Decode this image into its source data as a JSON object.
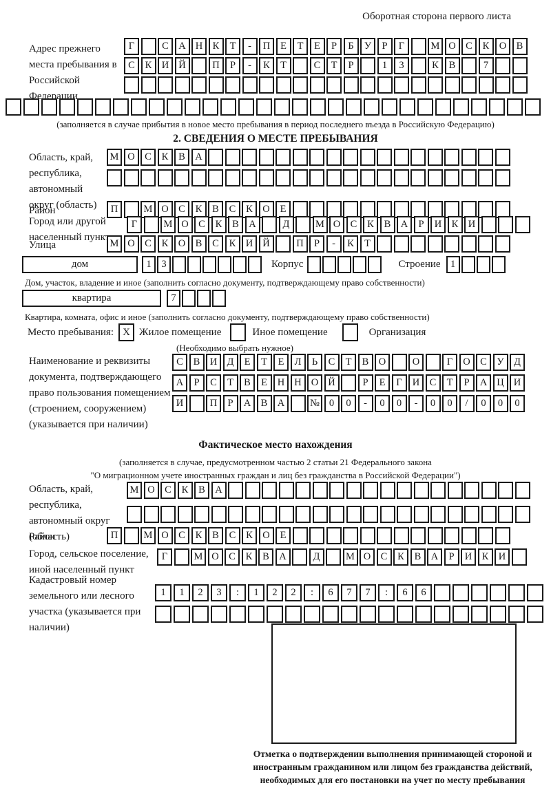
{
  "page": {
    "header_note": "Оборотная сторона первого листа"
  },
  "prev_address": {
    "label": "Адрес прежнего места пребывания в Российской Федерации",
    "rows": [
      {
        "count": 24,
        "chars": "Г САНКТ-ПЕТЕРБУРГ МОСКОВ"
      },
      {
        "count": 24,
        "chars": "СКИЙ ПР-КТ СТР 13 КВ 7"
      },
      {
        "count": 24,
        "chars": ""
      }
    ],
    "overflow_row": {
      "count": 30,
      "chars": ""
    },
    "note": "(заполняется в случае прибытия в новое место пребывания в период последнего въезда в Российскую Федерацию)"
  },
  "section2": {
    "title": "2. СВЕДЕНИЯ О МЕСТЕ ПРЕБЫВАНИЯ",
    "region": {
      "label": "Область, край, республика, автономный округ (область)",
      "rows": [
        {
          "count": 24,
          "chars": "МОСКВА"
        },
        {
          "count": 24,
          "chars": ""
        }
      ]
    },
    "district": {
      "label": "Район",
      "row": {
        "count": 24,
        "chars": "П МОСКВСКОЕ"
      }
    },
    "city": {
      "label": "Город или другой населенный пункт",
      "row": {
        "count": 24,
        "chars": "Г МОСКВА Д МОСКВАРИКИ"
      }
    },
    "street": {
      "label": "Улица",
      "row": {
        "count": 24,
        "chars": "МОСКОВСКИЙ ПР-КТ"
      }
    },
    "house": {
      "box_label": "дом",
      "cells": {
        "count": 8,
        "chars": "13"
      },
      "korpus_label": "Корпус",
      "korpus_cells": {
        "count": 5,
        "chars": ""
      },
      "stroenie_label": "Строение",
      "stroenie_cells": {
        "count": 4,
        "chars": "1"
      },
      "note": "Дом, участок, владение и иное (заполнить согласно документу, подтверждающему право собственности)"
    },
    "apartment": {
      "box_label": "квартира",
      "cells": {
        "count": 4,
        "chars": "7"
      },
      "note": "Квартира, комната, офис и иное (заполнить согласно документу, подтверждающему право собственности)"
    },
    "stay_type": {
      "label": "Место пребывания:",
      "options": [
        {
          "label": "Жилое помещение",
          "checked": "X"
        },
        {
          "label": "Иное помещение",
          "checked": ""
        },
        {
          "label": "Организация",
          "checked": ""
        }
      ],
      "note": "(Необходимо выбрать нужное)"
    },
    "document": {
      "label": "Наименование и реквизиты документа, подтверждающего право пользования помещением (строением, сооружением) (указывается при наличии)",
      "rows": [
        {
          "count": 21,
          "chars": "СВИДЕТЕЛЬСТВО О ГОСУД"
        },
        {
          "count": 21,
          "chars": "АРСТВЕННОЙ РЕГИСТРАЦИ"
        },
        {
          "count": 21,
          "chars": "И ПРАВА №00-00-00/000"
        }
      ]
    }
  },
  "actual_location": {
    "title": "Фактическое место нахождения",
    "note1": "(заполняется в случае, предусмотренном частью 2 статьи 21 Федерального закона",
    "note2": "\"О миграционном учете иностранных граждан и лиц без гражданства в Российской Федерации\")",
    "region": {
      "label": "Область, край, республика, автономный округ (область)",
      "rows": [
        {
          "count": 24,
          "chars": "МОСКВА"
        },
        {
          "count": 24,
          "chars": ""
        }
      ]
    },
    "district": {
      "label": "Район",
      "row": {
        "count": 24,
        "chars": "П МОСКВСКОЕ"
      }
    },
    "city": {
      "label": "Город, сельское поселение, иной населенный пункт",
      "row": {
        "count": 22,
        "chars": "Г МОСКВА Д МОСКВАРИКИ"
      }
    },
    "cadastral": {
      "label": "Кадастровый номер земельного или лесного участка (указывается при наличии)",
      "rows": [
        {
          "count": 21,
          "chars": "1123:122:677:66"
        },
        {
          "count": 21,
          "chars": ""
        }
      ]
    },
    "stamp_caption": "Отметка о подтверждении выполнения принимающей стороной и иностранным гражданином или лицом без гражданства действий, необходимых для его постановки на учет по месту пребывания"
  }
}
